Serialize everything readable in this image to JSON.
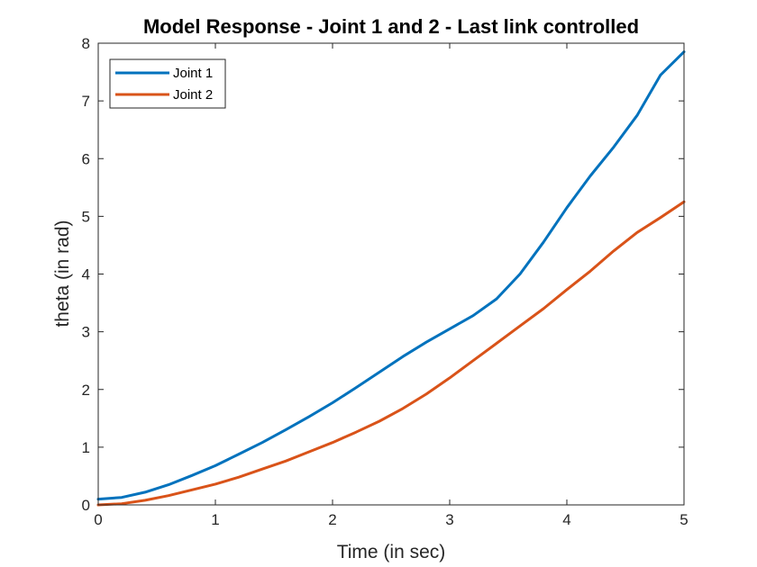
{
  "chart_data": {
    "type": "line",
    "title": "Model Response - Joint 1 and 2 - Last link controlled",
    "xlabel": "Time (in sec)",
    "ylabel": "theta (in rad)",
    "xlim": [
      0,
      5
    ],
    "ylim": [
      0,
      8
    ],
    "xticks": [
      "0",
      "1",
      "2",
      "3",
      "4",
      "5"
    ],
    "yticks": [
      "0",
      "1",
      "2",
      "3",
      "4",
      "5",
      "6",
      "7",
      "8"
    ],
    "grid": false,
    "legend_position": "top-left",
    "series": [
      {
        "name": "Joint 1",
        "color": "#0072BD",
        "x": [
          0,
          0.2,
          0.4,
          0.6,
          0.8,
          1.0,
          1.2,
          1.4,
          1.6,
          1.8,
          2.0,
          2.2,
          2.4,
          2.6,
          2.8,
          3.0,
          3.2,
          3.4,
          3.6,
          3.8,
          4.0,
          4.2,
          4.4,
          4.6,
          4.8,
          5.0
        ],
        "y": [
          0.1,
          0.13,
          0.22,
          0.35,
          0.51,
          0.68,
          0.88,
          1.08,
          1.3,
          1.53,
          1.77,
          2.03,
          2.3,
          2.57,
          2.82,
          3.05,
          3.28,
          3.57,
          4.0,
          4.55,
          5.15,
          5.7,
          6.2,
          6.75,
          7.45,
          7.85
        ]
      },
      {
        "name": "Joint 2",
        "color": "#D95319",
        "x": [
          0,
          0.2,
          0.4,
          0.6,
          0.8,
          1.0,
          1.2,
          1.4,
          1.6,
          1.8,
          2.0,
          2.2,
          2.4,
          2.6,
          2.8,
          3.0,
          3.2,
          3.4,
          3.6,
          3.8,
          4.0,
          4.2,
          4.4,
          4.6,
          4.8,
          5.0
        ],
        "y": [
          0.0,
          0.02,
          0.08,
          0.16,
          0.26,
          0.36,
          0.48,
          0.62,
          0.76,
          0.92,
          1.08,
          1.26,
          1.45,
          1.67,
          1.92,
          2.2,
          2.5,
          2.8,
          3.1,
          3.4,
          3.73,
          4.05,
          4.4,
          4.72,
          4.98,
          5.25
        ]
      }
    ]
  }
}
